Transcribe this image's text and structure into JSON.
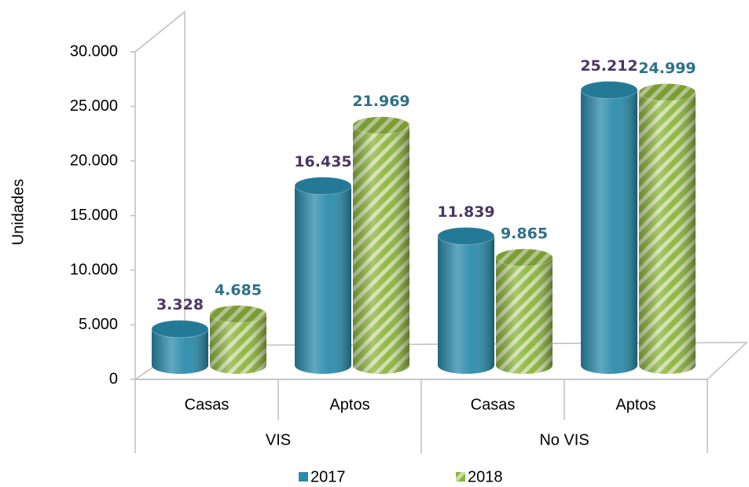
{
  "chart_data": {
    "type": "cylinder-bar",
    "y_label": "Unidades",
    "categories": [
      "Casas",
      "Aptos",
      "Casas",
      "Aptos"
    ],
    "groups": [
      "VIS",
      "No VIS"
    ],
    "series": [
      {
        "name": "2017",
        "color": "#2a8bab",
        "values": [
          3328,
          16435,
          11839,
          25212
        ],
        "value_labels": [
          "3.328",
          "16.435",
          "11.839",
          "25.212"
        ],
        "label_color": "#4b3764"
      },
      {
        "name": "2018",
        "color": "#8cb43a",
        "pattern": "diagonal-stripes",
        "values": [
          4685,
          21969,
          9865,
          24999
        ],
        "value_labels": [
          "4.685",
          "21.969",
          "9.865",
          "24.999"
        ],
        "label_color": "#2e7088"
      }
    ],
    "ylim": [
      0,
      30000
    ],
    "yticks": [
      0,
      {
        "value": 5000,
        "label": "5.000"
      },
      {
        "value": 10000,
        "label": "10.000"
      },
      {
        "value": 15000,
        "label": "15.000"
      },
      {
        "value": 20000,
        "label": "20.000"
      },
      {
        "value": 25000,
        "label": "25.000"
      },
      {
        "value": 30000,
        "label": "30.000"
      }
    ],
    "legend": "bottom"
  }
}
